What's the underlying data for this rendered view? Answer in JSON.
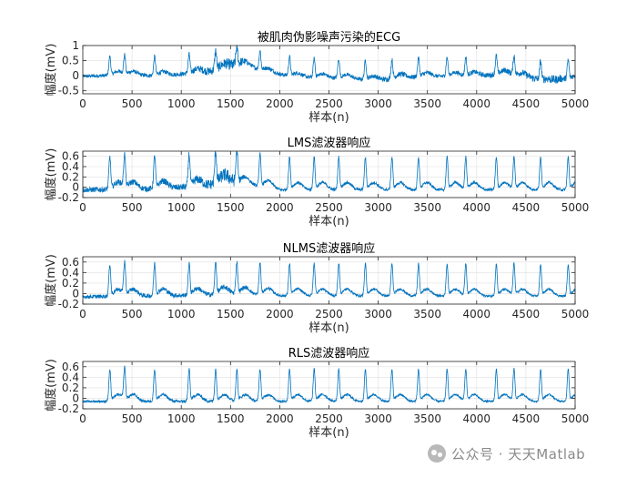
{
  "chart_data": [
    {
      "type": "line",
      "title": "被肌肉伪影噪声污染的ECG",
      "xlabel": "样本(n)",
      "ylabel": "幅度(mV)",
      "xlim": [
        0,
        5000
      ],
      "ylim": [
        -0.6,
        1.0
      ],
      "xticks": [
        0,
        500,
        1000,
        1500,
        2000,
        2500,
        3000,
        3500,
        4000,
        4500,
        5000
      ],
      "xtick_labels": [
        "0",
        "500",
        "1000",
        "1500",
        "2000",
        "2500",
        "3000",
        "3500",
        "4000",
        "4500",
        "5000"
      ],
      "yticks": [
        -0.5,
        0,
        0.5,
        1
      ],
      "ytick_labels": [
        "-0.5",
        "0",
        "0.5",
        "1"
      ],
      "grid": true,
      "series": [
        {
          "color": "#0072bd",
          "baseline": [
            [
              0,
              -0.02
            ],
            [
              400,
              0.02
            ],
            [
              800,
              0.0
            ],
            [
              1100,
              0.08
            ],
            [
              1300,
              0.15
            ],
            [
              1450,
              0.28
            ],
            [
              1600,
              0.38
            ],
            [
              1700,
              0.3
            ],
            [
              1900,
              0.1
            ],
            [
              2200,
              -0.05
            ],
            [
              2600,
              -0.08
            ],
            [
              3000,
              -0.15
            ],
            [
              3300,
              -0.05
            ],
            [
              3600,
              -0.02
            ],
            [
              3900,
              -0.02
            ],
            [
              4300,
              0.05
            ],
            [
              4600,
              -0.1
            ],
            [
              4750,
              -0.25
            ],
            [
              4850,
              -0.1
            ],
            [
              5000,
              -0.12
            ]
          ],
          "noise_amplitude": [
            [
              0,
              0.06
            ],
            [
              1000,
              0.07
            ],
            [
              1300,
              0.14
            ],
            [
              1550,
              0.2
            ],
            [
              1700,
              0.07
            ],
            [
              2800,
              0.06
            ],
            [
              3100,
              0.09
            ],
            [
              3700,
              0.06
            ],
            [
              4400,
              0.1
            ],
            [
              4800,
              0.14
            ],
            [
              5000,
              0.08
            ]
          ],
          "r_peak_amplitude": 0.62,
          "t_wave_amplitude": 0.13,
          "beats": [
            275,
            425,
            730,
            1080,
            1350,
            1565,
            1800,
            2100,
            2350,
            2600,
            2870,
            3140,
            3410,
            3700,
            3890,
            4200,
            4380,
            4650,
            4930
          ]
        }
      ]
    },
    {
      "type": "line",
      "title": "LMS滤波器响应",
      "xlabel": "样本(n)",
      "ylabel": "幅度(mV)",
      "xlim": [
        0,
        5000
      ],
      "ylim": [
        -0.2,
        0.7
      ],
      "xticks": [
        0,
        500,
        1000,
        1500,
        2000,
        2500,
        3000,
        3500,
        4000,
        4500,
        5000
      ],
      "xtick_labels": [
        "0",
        "500",
        "1000",
        "1500",
        "2000",
        "2500",
        "3000",
        "3500",
        "4000",
        "4500",
        "5000"
      ],
      "yticks": [
        -0.2,
        0,
        0.2,
        0.4,
        0.6
      ],
      "ytick_labels": [
        "-0.2",
        "0",
        "0.2",
        "0.4",
        "0.6"
      ],
      "grid": true,
      "series": [
        {
          "color": "#0072bd",
          "baseline": [
            [
              0,
              -0.05
            ],
            [
              700,
              -0.03
            ],
            [
              1200,
              0.02
            ],
            [
              1500,
              0.12
            ],
            [
              1650,
              0.06
            ],
            [
              2000,
              -0.05
            ],
            [
              5000,
              -0.05
            ]
          ],
          "noise_amplitude": [
            [
              0,
              0.05
            ],
            [
              1000,
              0.06
            ],
            [
              1300,
              0.1
            ],
            [
              1500,
              0.14
            ],
            [
              1650,
              0.03
            ],
            [
              5000,
              0.025
            ]
          ],
          "r_peak_amplitude": 0.62,
          "t_wave_amplitude": 0.14,
          "beats": [
            275,
            425,
            730,
            1080,
            1350,
            1565,
            1800,
            2100,
            2350,
            2600,
            2870,
            3140,
            3410,
            3700,
            3890,
            4200,
            4380,
            4650,
            4930
          ]
        }
      ]
    },
    {
      "type": "line",
      "title": "NLMS滤波器响应",
      "xlabel": "样本(n)",
      "ylabel": "幅度(mV)",
      "xlim": [
        0,
        5000
      ],
      "ylim": [
        -0.2,
        0.7
      ],
      "xticks": [
        0,
        500,
        1000,
        1500,
        2000,
        2500,
        3000,
        3500,
        4000,
        4500,
        5000
      ],
      "xtick_labels": [
        "0",
        "500",
        "1000",
        "1500",
        "2000",
        "2500",
        "3000",
        "3500",
        "4000",
        "4500",
        "5000"
      ],
      "yticks": [
        -0.2,
        0,
        0.2,
        0.4,
        0.6
      ],
      "ytick_labels": [
        "-0.2",
        "0",
        "0.2",
        "0.4",
        "0.6"
      ],
      "grid": true,
      "series": [
        {
          "color": "#0072bd",
          "baseline": [
            [
              0,
              -0.06
            ],
            [
              1200,
              -0.03
            ],
            [
              1500,
              0.0
            ],
            [
              2000,
              -0.04
            ],
            [
              5000,
              -0.05
            ]
          ],
          "noise_amplitude": [
            [
              0,
              0.035
            ],
            [
              1200,
              0.045
            ],
            [
              1500,
              0.05
            ],
            [
              1800,
              0.025
            ],
            [
              5000,
              0.02
            ]
          ],
          "r_peak_amplitude": 0.6,
          "t_wave_amplitude": 0.13,
          "beats": [
            275,
            425,
            730,
            1080,
            1350,
            1565,
            1800,
            2100,
            2350,
            2600,
            2870,
            3140,
            3410,
            3700,
            3890,
            4200,
            4380,
            4650,
            4930
          ]
        }
      ]
    },
    {
      "type": "line",
      "title": "RLS滤波器响应",
      "xlabel": "样本(n)",
      "ylabel": "幅度(mV)",
      "xlim": [
        0,
        5000
      ],
      "ylim": [
        -0.2,
        0.7
      ],
      "xticks": [
        0,
        500,
        1000,
        1500,
        2000,
        2500,
        3000,
        3500,
        4000,
        4500,
        5000
      ],
      "xtick_labels": [
        "0",
        "500",
        "1000",
        "1500",
        "2000",
        "2500",
        "3000",
        "3500",
        "4000",
        "4500",
        "5000"
      ],
      "yticks": [
        -0.2,
        0,
        0.2,
        0.4,
        0.6
      ],
      "ytick_labels": [
        "-0.2",
        "0",
        "0.2",
        "0.4",
        "0.6"
      ],
      "grid": true,
      "series": [
        {
          "color": "#0072bd",
          "baseline": [
            [
              0,
              -0.06
            ],
            [
              5000,
              -0.06
            ]
          ],
          "noise_amplitude": [
            [
              0,
              0.02
            ],
            [
              1200,
              0.03
            ],
            [
              1600,
              0.025
            ],
            [
              5000,
              0.015
            ]
          ],
          "r_peak_amplitude": 0.6,
          "t_wave_amplitude": 0.13,
          "beats": [
            275,
            425,
            730,
            1080,
            1350,
            1565,
            1800,
            2100,
            2350,
            2600,
            2870,
            3140,
            3410,
            3700,
            3890,
            4200,
            4380,
            4650,
            4930
          ]
        }
      ]
    }
  ],
  "watermark": {
    "text": "公众号 · 天天Matlab",
    "icon": "wechat-icon"
  }
}
